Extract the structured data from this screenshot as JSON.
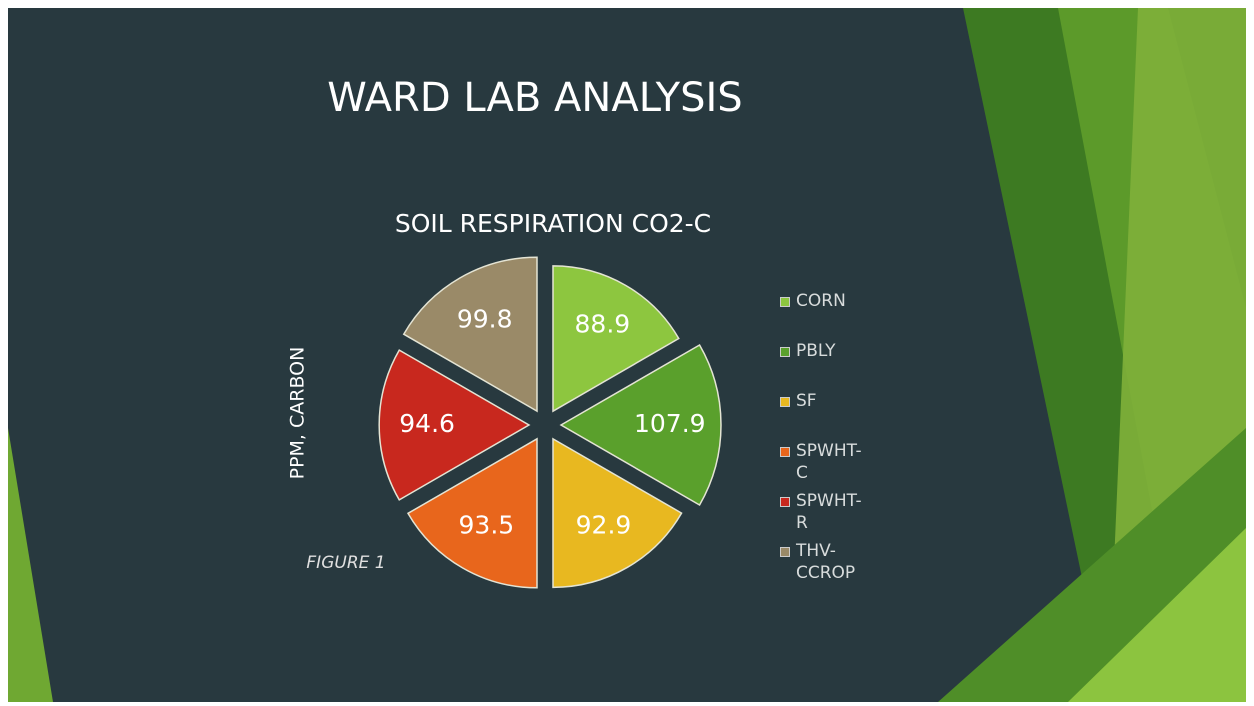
{
  "title": "WARD LAB ANALYSIS",
  "chart_data": {
    "type": "polar",
    "title": "SOIL RESPIRATION CO2-C",
    "ylabel": "PPM, CARBON",
    "annotation": "FIGURE 1",
    "categories": [
      "CORN",
      "PBLY",
      "SF",
      "SPWHT-C",
      "SPWHT-R",
      "THV-CCROP"
    ],
    "values": [
      88.9,
      107.9,
      92.9,
      93.5,
      94.6,
      99.8
    ],
    "colors": [
      "#8dc63f",
      "#5aa02c",
      "#e8b820",
      "#e8661c",
      "#c8281e",
      "#9a8a68"
    ],
    "legend": "right"
  }
}
